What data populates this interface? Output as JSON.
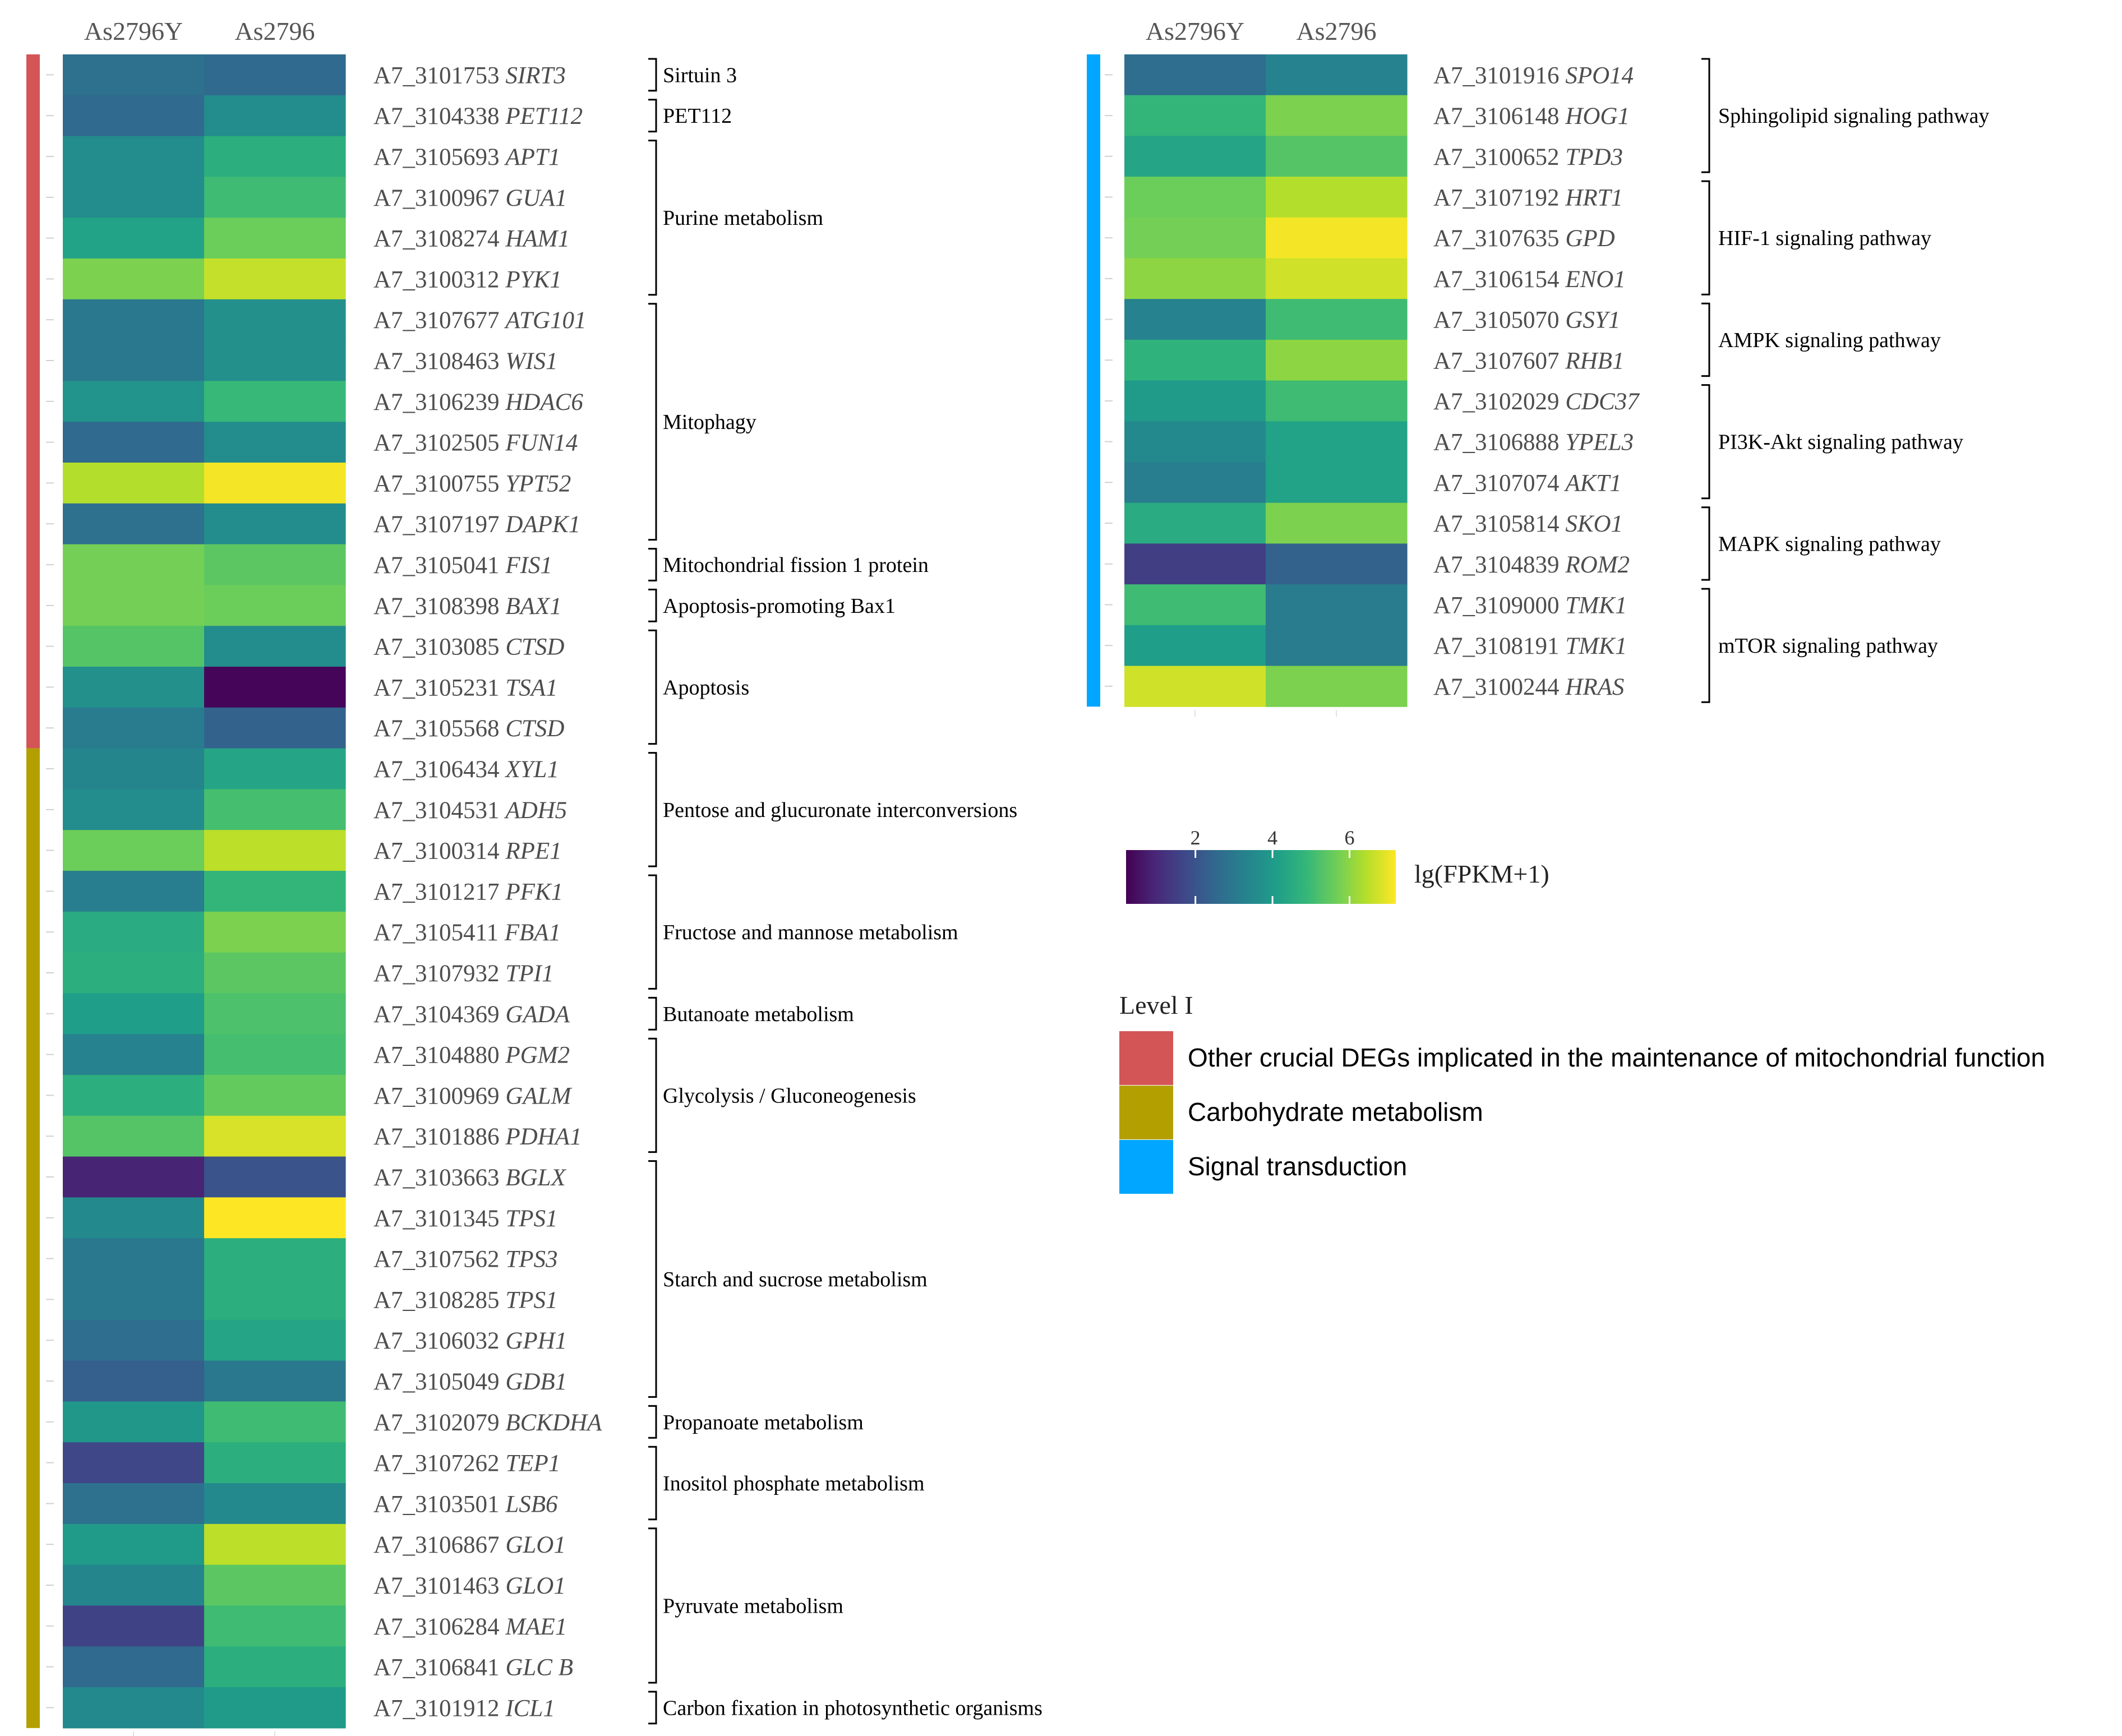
{
  "chart_data": {
    "type": "heatmap",
    "columns": [
      "As2796Y",
      "As2796"
    ],
    "colorbar": {
      "title": "lg(FPKM+1)",
      "ticks": [
        2,
        4,
        6
      ],
      "range": [
        0.2,
        7.2
      ],
      "colormap": "viridis"
    },
    "legend": {
      "title": "Level I",
      "items": [
        {
          "label": "Other crucial DEGs implicated in the maintenance of mitochondrial function",
          "color": "#d35556"
        },
        {
          "label": "Carbohydrate metabolism",
          "color": "#b3a000"
        },
        {
          "label": "Signal transduction",
          "color": "#00a6ff"
        }
      ]
    },
    "panels": [
      {
        "rows": [
          {
            "id": "A7_3101753",
            "gene": "SIRT3",
            "level": 0,
            "values": [
              2.8,
              2.6
            ]
          },
          {
            "id": "A7_3104338",
            "gene": "PET112",
            "level": 0,
            "values": [
              2.6,
              3.6
            ]
          },
          {
            "id": "A7_3105693",
            "gene": "APT1",
            "level": 0,
            "values": [
              3.6,
              4.6
            ]
          },
          {
            "id": "A7_3100967",
            "gene": "GUA1",
            "level": 0,
            "values": [
              3.6,
              5.0
            ]
          },
          {
            "id": "A7_3108274",
            "gene": "HAM1",
            "level": 0,
            "values": [
              4.2,
              5.6
            ]
          },
          {
            "id": "A7_3100312",
            "gene": "PYK1",
            "level": 0,
            "values": [
              5.8,
              6.6
            ]
          },
          {
            "id": "A7_3107677",
            "gene": "ATG101",
            "level": 0,
            "values": [
              3.0,
              3.7
            ]
          },
          {
            "id": "A7_3108463",
            "gene": "WIS1",
            "level": 0,
            "values": [
              3.0,
              3.7
            ]
          },
          {
            "id": "A7_3106239",
            "gene": "HDAC6",
            "level": 0,
            "values": [
              3.8,
              4.9
            ]
          },
          {
            "id": "A7_3102505",
            "gene": "FUN14",
            "level": 0,
            "values": [
              2.6,
              3.6
            ]
          },
          {
            "id": "A7_3100755",
            "gene": "YPT52",
            "level": 0,
            "values": [
              6.4,
              7.1
            ]
          },
          {
            "id": "A7_3107197",
            "gene": "DAPK1",
            "level": 0,
            "values": [
              2.8,
              3.6
            ]
          },
          {
            "id": "A7_3105041",
            "gene": "FIS1",
            "level": 0,
            "values": [
              5.7,
              5.4
            ]
          },
          {
            "id": "A7_3108398",
            "gene": "BAX1",
            "level": 0,
            "values": [
              5.7,
              5.6
            ]
          },
          {
            "id": "A7_3103085",
            "gene": "CTSD",
            "level": 0,
            "values": [
              5.3,
              3.6
            ]
          },
          {
            "id": "A7_3105231",
            "gene": "TSA1",
            "level": 0,
            "values": [
              3.7,
              0.3
            ]
          },
          {
            "id": "A7_3105568",
            "gene": "CTSD",
            "level": 0,
            "values": [
              3.1,
              2.4
            ]
          },
          {
            "id": "A7_3106434",
            "gene": "XYL1",
            "level": 1,
            "values": [
              3.4,
              4.3
            ]
          },
          {
            "id": "A7_3104531",
            "gene": "ADH5",
            "level": 1,
            "values": [
              3.6,
              5.1
            ]
          },
          {
            "id": "A7_3100314",
            "gene": "RPE1",
            "level": 1,
            "values": [
              5.6,
              6.5
            ]
          },
          {
            "id": "A7_3101217",
            "gene": "PFK1",
            "level": 1,
            "values": [
              3.2,
              4.8
            ]
          },
          {
            "id": "A7_3105411",
            "gene": "FBA1",
            "level": 1,
            "values": [
              4.5,
              5.8
            ]
          },
          {
            "id": "A7_3107932",
            "gene": "TPI1",
            "level": 1,
            "values": [
              4.6,
              5.4
            ]
          },
          {
            "id": "A7_3104369",
            "gene": "GADA",
            "level": 1,
            "values": [
              4.1,
              5.2
            ]
          },
          {
            "id": "A7_3104880",
            "gene": "PGM2",
            "level": 1,
            "values": [
              3.3,
              5.1
            ]
          },
          {
            "id": "A7_3100969",
            "gene": "GALM",
            "level": 1,
            "values": [
              4.6,
              5.5
            ]
          },
          {
            "id": "A7_3101886",
            "gene": "PDHA1",
            "level": 1,
            "values": [
              5.3,
              6.8
            ]
          },
          {
            "id": "A7_3103663",
            "gene": "BGLX",
            "level": 1,
            "values": [
              0.9,
              2.0
            ]
          },
          {
            "id": "A7_3101345",
            "gene": "TPS1",
            "level": 1,
            "values": [
              3.5,
              7.2
            ]
          },
          {
            "id": "A7_3107562",
            "gene": "TPS3",
            "level": 1,
            "values": [
              3.0,
              4.6
            ]
          },
          {
            "id": "A7_3108285",
            "gene": "TPS1",
            "level": 1,
            "values": [
              3.0,
              4.6
            ]
          },
          {
            "id": "A7_3106032",
            "gene": "GPH1",
            "level": 1,
            "values": [
              2.7,
              4.3
            ]
          },
          {
            "id": "A7_3105049",
            "gene": "GDB1",
            "level": 1,
            "values": [
              2.3,
              3.0
            ]
          },
          {
            "id": "A7_3102079",
            "gene": "BCKDHA",
            "level": 1,
            "values": [
              3.9,
              5.0
            ]
          },
          {
            "id": "A7_3107262",
            "gene": "TEP1",
            "level": 1,
            "values": [
              1.7,
              4.6
            ]
          },
          {
            "id": "A7_3103501",
            "gene": "LSB6",
            "level": 1,
            "values": [
              2.8,
              3.5
            ]
          },
          {
            "id": "A7_3106867",
            "gene": "GLO1",
            "level": 1,
            "values": [
              4.0,
              6.5
            ]
          },
          {
            "id": "A7_3101463",
            "gene": "GLO1",
            "level": 1,
            "values": [
              3.4,
              5.4
            ]
          },
          {
            "id": "A7_3106284",
            "gene": "MAE1",
            "level": 1,
            "values": [
              1.6,
              5.0
            ]
          },
          {
            "id": "A7_3106841",
            "gene": "GLC B",
            "level": 1,
            "values": [
              2.6,
              4.6
            ]
          },
          {
            "id": "A7_3101912",
            "gene": "ICL1",
            "level": 1,
            "values": [
              3.5,
              4.0
            ]
          }
        ],
        "groups": [
          {
            "label": "Sirtuin 3",
            "start": 0,
            "end": 0
          },
          {
            "label": "PET112",
            "start": 1,
            "end": 1
          },
          {
            "label": "Purine metabolism",
            "start": 2,
            "end": 5
          },
          {
            "label": "Mitophagy",
            "start": 6,
            "end": 11
          },
          {
            "label": "Mitochondrial fission 1 protein",
            "start": 12,
            "end": 12
          },
          {
            "label": "Apoptosis-promoting Bax1",
            "start": 13,
            "end": 13
          },
          {
            "label": "Apoptosis",
            "start": 14,
            "end": 16
          },
          {
            "label": "Pentose and glucuronate interconversions",
            "start": 17,
            "end": 19
          },
          {
            "label": "Fructose and mannose metabolism",
            "start": 20,
            "end": 22
          },
          {
            "label": "Butanoate metabolism",
            "start": 23,
            "end": 23
          },
          {
            "label": "Glycolysis / Gluconeogenesis",
            "start": 24,
            "end": 26
          },
          {
            "label": "Starch and sucrose metabolism",
            "start": 27,
            "end": 32
          },
          {
            "label": "Propanoate metabolism",
            "start": 33,
            "end": 33
          },
          {
            "label": "Inositol phosphate metabolism",
            "start": 34,
            "end": 35
          },
          {
            "label": "Pyruvate metabolism",
            "start": 36,
            "end": 39
          },
          {
            "label": "Carbon fixation in photosynthetic organisms",
            "start": 40,
            "end": 40
          }
        ]
      },
      {
        "rows": [
          {
            "id": "A7_3101916",
            "gene": "SPO14",
            "level": 2,
            "values": [
              2.7,
              3.3
            ]
          },
          {
            "id": "A7_3106148",
            "gene": "HOG1",
            "level": 2,
            "values": [
              4.8,
              5.8
            ]
          },
          {
            "id": "A7_3100652",
            "gene": "TPD3",
            "level": 2,
            "values": [
              4.3,
              5.3
            ]
          },
          {
            "id": "A7_3107192",
            "gene": "HRT1",
            "level": 2,
            "values": [
              5.6,
              6.4
            ]
          },
          {
            "id": "A7_3107635",
            "gene": "GPD",
            "level": 2,
            "values": [
              5.7,
              7.1
            ]
          },
          {
            "id": "A7_3106154",
            "gene": "ENO1",
            "level": 2,
            "values": [
              6.0,
              6.7
            ]
          },
          {
            "id": "A7_3105070",
            "gene": "GSY1",
            "level": 2,
            "values": [
              3.3,
              5.0
            ]
          },
          {
            "id": "A7_3107607",
            "gene": "RHB1",
            "level": 2,
            "values": [
              4.7,
              6.0
            ]
          },
          {
            "id": "A7_3102029",
            "gene": "CDC37",
            "level": 2,
            "values": [
              4.0,
              5.0
            ]
          },
          {
            "id": "A7_3106888",
            "gene": "YPEL3",
            "level": 2,
            "values": [
              3.5,
              4.2
            ]
          },
          {
            "id": "A7_3107074",
            "gene": "AKT1",
            "level": 2,
            "values": [
              3.2,
              4.2
            ]
          },
          {
            "id": "A7_3105814",
            "gene": "SKO1",
            "level": 2,
            "values": [
              4.5,
              5.8
            ]
          },
          {
            "id": "A7_3104839",
            "gene": "ROM2",
            "level": 2,
            "values": [
              1.5,
              2.4
            ]
          },
          {
            "id": "A7_3109000",
            "gene": "TMK1",
            "level": 2,
            "values": [
              5.0,
              3.1
            ]
          },
          {
            "id": "A7_3108191",
            "gene": "TMK1",
            "level": 2,
            "values": [
              4.1,
              3.1
            ]
          },
          {
            "id": "A7_3100244",
            "gene": "HRAS",
            "level": 2,
            "values": [
              6.7,
              5.8
            ]
          }
        ],
        "groups": [
          {
            "label": "Sphingolipid signaling pathway",
            "start": 0,
            "end": 2
          },
          {
            "label": "HIF-1 signaling pathway",
            "start": 3,
            "end": 5
          },
          {
            "label": "AMPK signaling pathway",
            "start": 6,
            "end": 7
          },
          {
            "label": "PI3K-Akt signaling pathway",
            "start": 8,
            "end": 10
          },
          {
            "label": "MAPK signaling pathway",
            "start": 11,
            "end": 12
          },
          {
            "label": "mTOR signaling pathway",
            "start": 13,
            "end": 15
          }
        ]
      }
    ]
  }
}
